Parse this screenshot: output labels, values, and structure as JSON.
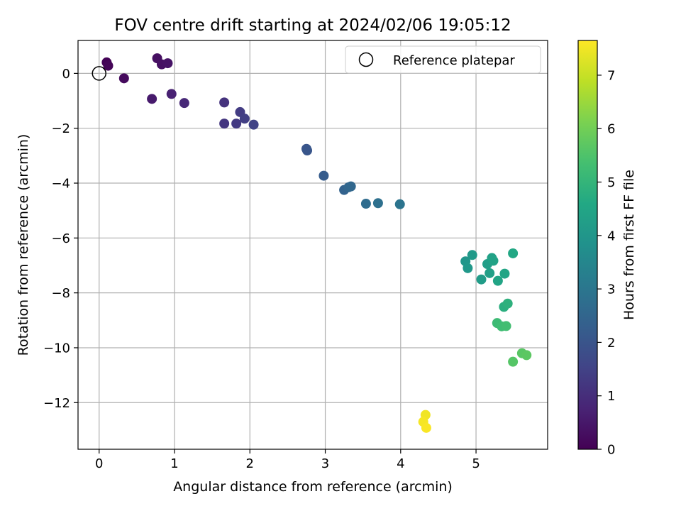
{
  "chart_data": {
    "type": "scatter",
    "title": "FOV centre drift starting at 2024/02/06 19:05:12",
    "xlabel": "Angular distance from reference (arcmin)",
    "ylabel": "Rotation from reference (arcmin)",
    "xlim": [
      -0.28,
      5.95
    ],
    "ylim": [
      -13.7,
      1.2
    ],
    "xticks": [
      0,
      1,
      2,
      3,
      4,
      5
    ],
    "yticks": [
      0,
      -2,
      -4,
      -6,
      -8,
      -10,
      -12
    ],
    "grid": true,
    "legend": {
      "position": "top-right",
      "entries": [
        "Reference platepar"
      ]
    },
    "reference_point": {
      "x": 0,
      "y": 0,
      "label": "Reference platepar"
    },
    "colorbar": {
      "label": "Hours from first FF file",
      "min": 0,
      "max": 7.65,
      "ticks": [
        0,
        1,
        2,
        3,
        4,
        5,
        6,
        7
      ],
      "colormap": "viridis"
    },
    "points": [
      {
        "x": 0.1,
        "y": 0.4,
        "h": 0.05
      },
      {
        "x": 0.12,
        "y": 0.28,
        "h": 0.1
      },
      {
        "x": 0.33,
        "y": -0.18,
        "h": 0.2
      },
      {
        "x": 0.77,
        "y": 0.55,
        "h": 0.3
      },
      {
        "x": 0.83,
        "y": 0.33,
        "h": 0.35
      },
      {
        "x": 0.91,
        "y": 0.37,
        "h": 0.4
      },
      {
        "x": 0.7,
        "y": -0.93,
        "h": 0.55
      },
      {
        "x": 0.96,
        "y": -0.75,
        "h": 0.7
      },
      {
        "x": 1.13,
        "y": -1.08,
        "h": 0.85
      },
      {
        "x": 1.66,
        "y": -1.06,
        "h": 1.1
      },
      {
        "x": 1.66,
        "y": -1.83,
        "h": 1.2
      },
      {
        "x": 1.82,
        "y": -1.83,
        "h": 1.3
      },
      {
        "x": 1.87,
        "y": -1.41,
        "h": 1.35
      },
      {
        "x": 1.93,
        "y": -1.65,
        "h": 1.4
      },
      {
        "x": 2.05,
        "y": -1.87,
        "h": 1.5
      },
      {
        "x": 2.75,
        "y": -2.75,
        "h": 2.0
      },
      {
        "x": 2.76,
        "y": -2.81,
        "h": 2.05
      },
      {
        "x": 2.98,
        "y": -3.73,
        "h": 2.2
      },
      {
        "x": 3.25,
        "y": -4.25,
        "h": 2.4
      },
      {
        "x": 3.31,
        "y": -4.15,
        "h": 2.5
      },
      {
        "x": 3.34,
        "y": -4.12,
        "h": 2.55
      },
      {
        "x": 3.54,
        "y": -4.75,
        "h": 2.7
      },
      {
        "x": 3.7,
        "y": -4.73,
        "h": 2.8
      },
      {
        "x": 3.99,
        "y": -4.77,
        "h": 2.95
      },
      {
        "x": 4.86,
        "y": -6.85,
        "h": 4.0
      },
      {
        "x": 4.89,
        "y": -7.1,
        "h": 4.05
      },
      {
        "x": 4.95,
        "y": -6.62,
        "h": 4.1
      },
      {
        "x": 5.07,
        "y": -7.51,
        "h": 4.2
      },
      {
        "x": 5.15,
        "y": -6.95,
        "h": 4.25
      },
      {
        "x": 5.18,
        "y": -7.28,
        "h": 4.3
      },
      {
        "x": 5.21,
        "y": -6.73,
        "h": 4.35
      },
      {
        "x": 5.23,
        "y": -6.83,
        "h": 4.4
      },
      {
        "x": 5.29,
        "y": -7.56,
        "h": 4.45
      },
      {
        "x": 5.38,
        "y": -7.3,
        "h": 4.5
      },
      {
        "x": 5.49,
        "y": -6.56,
        "h": 4.55
      },
      {
        "x": 5.37,
        "y": -8.51,
        "h": 4.8
      },
      {
        "x": 5.42,
        "y": -8.39,
        "h": 4.85
      },
      {
        "x": 5.28,
        "y": -9.1,
        "h": 5.2
      },
      {
        "x": 5.34,
        "y": -9.22,
        "h": 5.25
      },
      {
        "x": 5.4,
        "y": -9.21,
        "h": 5.3
      },
      {
        "x": 5.49,
        "y": -10.51,
        "h": 5.6
      },
      {
        "x": 5.61,
        "y": -10.2,
        "h": 5.65
      },
      {
        "x": 5.67,
        "y": -10.27,
        "h": 5.7
      },
      {
        "x": 4.33,
        "y": -12.45,
        "h": 7.5
      },
      {
        "x": 4.3,
        "y": -12.7,
        "h": 7.55
      },
      {
        "x": 4.34,
        "y": -12.92,
        "h": 7.6
      }
    ]
  }
}
